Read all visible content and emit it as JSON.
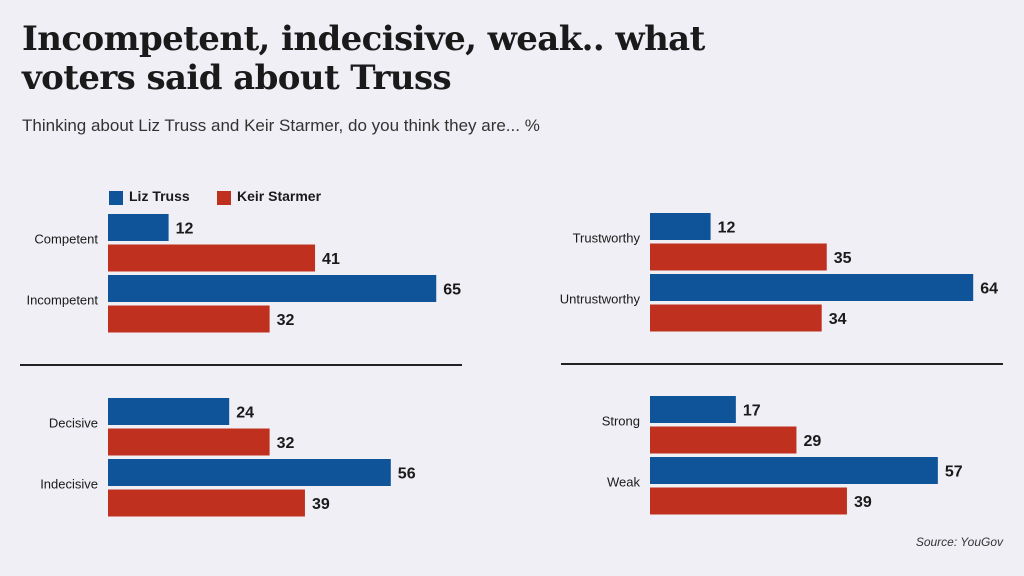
{
  "title": "Incompetent, indecisive, weak.. what voters said about Truss",
  "subtitle": "Thinking about Liz Truss and Keir Starmer, do you think they are... %",
  "source": "Source: YouGov",
  "colors": {
    "liz_truss": "#0f5499",
    "keir_starmer": "#c0301f",
    "divider": "#222222",
    "text": "#1a1a1a"
  },
  "legend": [
    {
      "name": "Liz Truss",
      "color": "#0f5499"
    },
    {
      "name": "Keir Starmer",
      "color": "#c0301f"
    }
  ],
  "chart_data": [
    {
      "type": "bar",
      "orientation": "horizontal",
      "categories": [
        "Competent",
        "Incompetent"
      ],
      "series": [
        {
          "name": "Liz Truss",
          "values": [
            12,
            65
          ]
        },
        {
          "name": "Keir Starmer",
          "values": [
            41,
            32
          ]
        }
      ],
      "unit": "%",
      "grid": false
    },
    {
      "type": "bar",
      "orientation": "horizontal",
      "categories": [
        "Trustworthy",
        "Untrustworthy"
      ],
      "series": [
        {
          "name": "Liz Truss",
          "values": [
            12,
            64
          ]
        },
        {
          "name": "Keir Starmer",
          "values": [
            35,
            34
          ]
        }
      ],
      "unit": "%",
      "grid": false
    },
    {
      "type": "bar",
      "orientation": "horizontal",
      "categories": [
        "Decisive",
        "Indecisive"
      ],
      "series": [
        {
          "name": "Liz Truss",
          "values": [
            24,
            56
          ]
        },
        {
          "name": "Keir Starmer",
          "values": [
            32,
            39
          ]
        }
      ],
      "unit": "%",
      "grid": false
    },
    {
      "type": "bar",
      "orientation": "horizontal",
      "categories": [
        "Strong",
        "Weak"
      ],
      "series": [
        {
          "name": "Liz Truss",
          "values": [
            17,
            57
          ]
        },
        {
          "name": "Keir Starmer",
          "values": [
            29,
            39
          ]
        }
      ],
      "unit": "%",
      "grid": false
    }
  ]
}
